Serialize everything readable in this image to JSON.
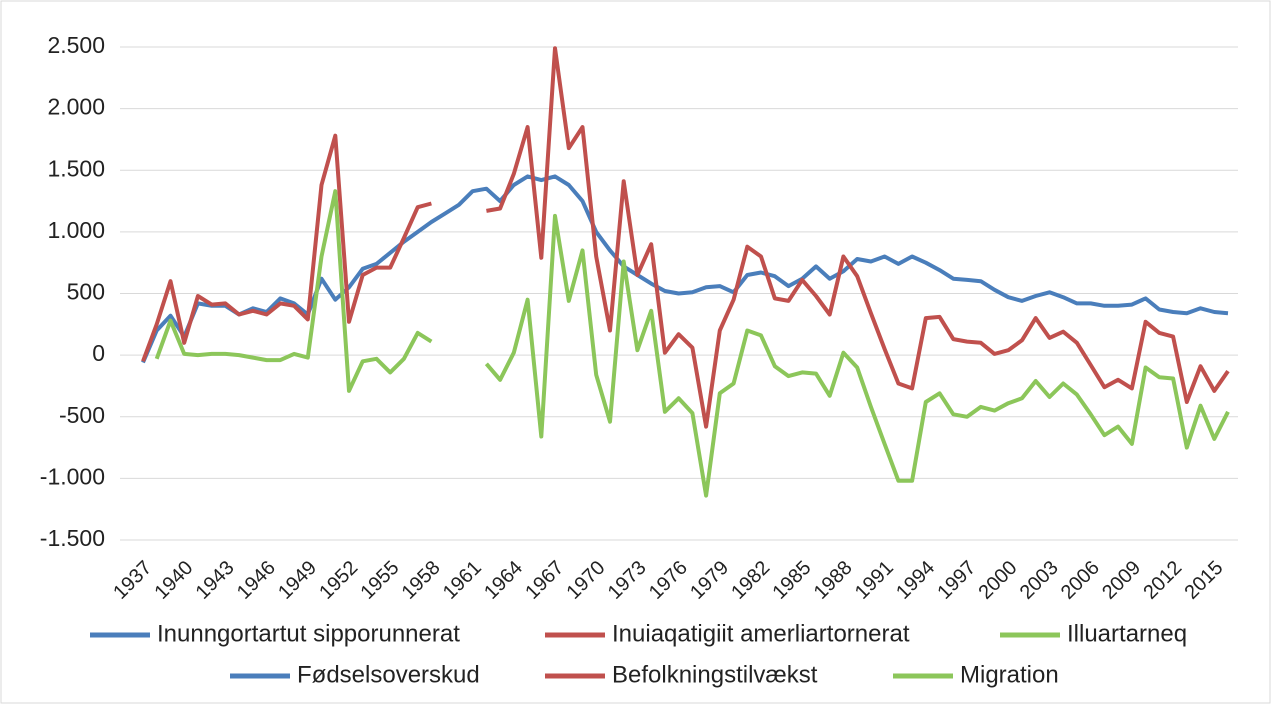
{
  "chart_data": {
    "type": "line",
    "x": [
      1937,
      1938,
      1939,
      1940,
      1941,
      1942,
      1943,
      1944,
      1945,
      1946,
      1947,
      1948,
      1949,
      1950,
      1951,
      1952,
      1953,
      1954,
      1955,
      1956,
      1957,
      1958,
      1959,
      1960,
      1961,
      1962,
      1963,
      1964,
      1965,
      1966,
      1967,
      1968,
      1969,
      1970,
      1971,
      1972,
      1973,
      1974,
      1975,
      1976,
      1977,
      1978,
      1979,
      1980,
      1981,
      1982,
      1983,
      1984,
      1985,
      1986,
      1987,
      1988,
      1989,
      1990,
      1991,
      1992,
      1993,
      1994,
      1995,
      1996,
      1997,
      1998,
      1999,
      2000,
      2001,
      2002,
      2003,
      2004,
      2005,
      2006,
      2007,
      2008,
      2009,
      2010,
      2011,
      2012,
      2013,
      2014,
      2015,
      2016
    ],
    "xlim": [
      1937,
      2016
    ],
    "xticks": [
      1937,
      1940,
      1943,
      1946,
      1949,
      1952,
      1955,
      1958,
      1961,
      1964,
      1967,
      1970,
      1973,
      1976,
      1979,
      1982,
      1985,
      1988,
      1991,
      1994,
      1997,
      2000,
      2003,
      2006,
      2009,
      2012,
      2015
    ],
    "ylim": [
      -1500,
      2500
    ],
    "yticks": [
      {
        "value": -1500,
        "label": "-1.500"
      },
      {
        "value": -1000,
        "label": "-1.000"
      },
      {
        "value": -500,
        "label": "-500"
      },
      0,
      500,
      {
        "value": 1000,
        "label": "1.000"
      },
      {
        "value": 1500,
        "label": "1.500"
      },
      {
        "value": 2000,
        "label": "2.000"
      },
      {
        "value": 2500,
        "label": "2.500"
      }
    ],
    "grid": true,
    "legend": "bottom",
    "series": [
      {
        "name": "Inunngortartut sipporunnerat",
        "name_da": "Fødselsoverskud",
        "color": "#4a7ebb",
        "values": [
          -60,
          200,
          320,
          150,
          420,
          400,
          400,
          330,
          380,
          350,
          460,
          420,
          330,
          620,
          450,
          550,
          700,
          740,
          830,
          920,
          1000,
          1080,
          1150,
          1220,
          1330,
          1350,
          1250,
          1380,
          1450,
          1420,
          1450,
          1380,
          1250,
          1000,
          850,
          720,
          650,
          580,
          520,
          500,
          510,
          550,
          560,
          510,
          650,
          670,
          640,
          560,
          620,
          720,
          620,
          680,
          780,
          760,
          800,
          740,
          800,
          750,
          690,
          620,
          610,
          600,
          530,
          470,
          440,
          480,
          510,
          470,
          420,
          420,
          400,
          400,
          410,
          460,
          370,
          350,
          340,
          380,
          350,
          340
        ]
      },
      {
        "name": "Inuiaqatigiit amerliartornerat",
        "name_da": "Befolkningstilvækst",
        "color": "#c0504d",
        "values": [
          -50,
          250,
          600,
          100,
          480,
          410,
          420,
          330,
          360,
          330,
          420,
          400,
          290,
          1380,
          1780,
          270,
          650,
          710,
          710,
          950,
          1200,
          1230,
          null,
          null,
          null,
          1170,
          1190,
          1470,
          1850,
          790,
          2490,
          1680,
          1850,
          800,
          200,
          1410,
          650,
          900,
          20,
          170,
          60,
          -580,
          200,
          450,
          880,
          800,
          460,
          440,
          610,
          480,
          330,
          800,
          640,
          340,
          50,
          -230,
          -270,
          300,
          310,
          130,
          110,
          100,
          10,
          40,
          120,
          300,
          140,
          190,
          100,
          -80,
          -260,
          -200,
          -270,
          270,
          180,
          150,
          -380,
          -90,
          -290,
          -130
        ]
      },
      {
        "name": "Illuartarneq",
        "name_da": "Migration",
        "color": "#8cc65a",
        "values": [
          null,
          -30,
          280,
          10,
          0,
          10,
          10,
          0,
          -20,
          -40,
          -40,
          10,
          -20,
          800,
          1330,
          -290,
          -50,
          -30,
          -140,
          -30,
          180,
          110,
          null,
          null,
          null,
          -70,
          -200,
          20,
          450,
          -660,
          1130,
          440,
          850,
          -160,
          -540,
          760,
          40,
          360,
          -460,
          -350,
          -470,
          -1140,
          -310,
          -230,
          200,
          160,
          -90,
          -170,
          -140,
          -150,
          -330,
          20,
          -100,
          -420,
          -720,
          -1020,
          -1020,
          -380,
          -310,
          -480,
          -500,
          -420,
          -450,
          -390,
          -350,
          -210,
          -340,
          -230,
          -320,
          -480,
          -650,
          -580,
          -720,
          -100,
          -180,
          -190,
          -750,
          -410,
          -680,
          -460
        ]
      }
    ]
  }
}
